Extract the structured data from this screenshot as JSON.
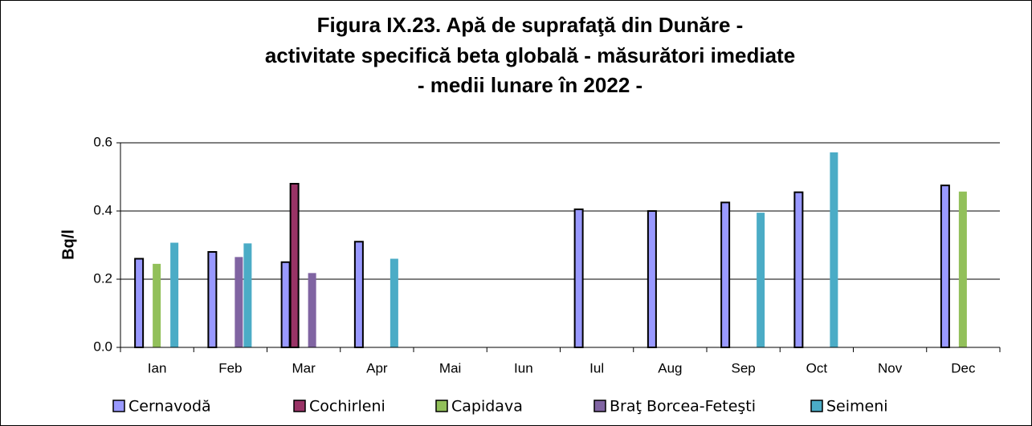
{
  "chart_data": {
    "type": "bar",
    "title": [
      "Figura IX.23. Apă de suprafaţă din Dunăre -",
      "activitate specifică beta globală - măsurători imediate",
      "- medii lunare în 2022 -"
    ],
    "y_label": "Bq/l",
    "categories": [
      "Ian",
      "Feb",
      "Mar",
      "Apr",
      "Mai",
      "Iun",
      "Iul",
      "Aug",
      "Sep",
      "Oct",
      "Nov",
      "Dec"
    ],
    "series": [
      {
        "name": "Cernavodă",
        "color": "#9999ff",
        "edgecolor": "#000000",
        "values": [
          0.26,
          0.28,
          0.25,
          0.31,
          null,
          null,
          0.405,
          0.4,
          0.425,
          0.455,
          null,
          0.475
        ]
      },
      {
        "name": "Cochirleni",
        "color": "#993366",
        "edgecolor": "#000000",
        "values": [
          null,
          null,
          0.48,
          null,
          null,
          null,
          null,
          null,
          null,
          null,
          null,
          null
        ]
      },
      {
        "name": "Capidava",
        "color": "#92c05a",
        "values": [
          0.245,
          null,
          null,
          null,
          null,
          null,
          null,
          null,
          null,
          null,
          null,
          0.457
        ]
      },
      {
        "name": "Braţ Borcea-Feteşti",
        "color": "#8064a2",
        "values": [
          null,
          0.265,
          0.218,
          null,
          null,
          null,
          null,
          null,
          null,
          null,
          null,
          null
        ]
      },
      {
        "name": "Seimeni",
        "color": "#4bacc6",
        "values": [
          0.307,
          0.305,
          null,
          0.26,
          null,
          null,
          null,
          null,
          0.395,
          0.572,
          null,
          null
        ]
      }
    ],
    "ylim": [
      0,
      0.6
    ],
    "yticks": [
      {
        "value": 0,
        "label": "0.0"
      },
      {
        "value": 0.2,
        "label": "0.2"
      },
      {
        "value": 0.4,
        "label": "0.4"
      },
      {
        "value": 0.6,
        "label": "0.6"
      }
    ],
    "grid": true,
    "legend": "bottom"
  }
}
